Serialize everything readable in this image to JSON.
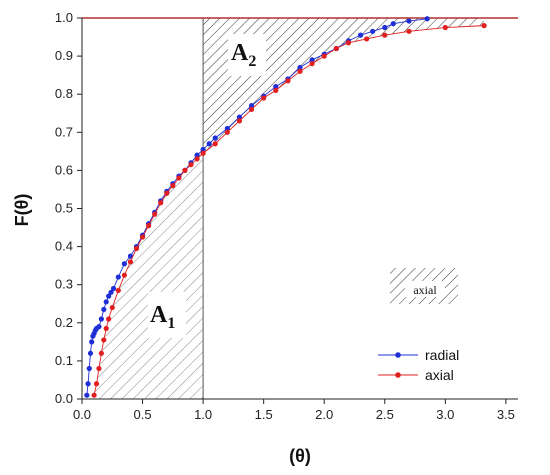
{
  "chart_data": {
    "type": "line",
    "title": "",
    "xlabel": "(θ)",
    "ylabel": "F(θ)",
    "xlim": [
      0,
      3.6
    ],
    "ylim": [
      0,
      1.0
    ],
    "x_ticks": [
      "0.0",
      "0.5",
      "1.0",
      "1.5",
      "2.0",
      "2.5",
      "3.0",
      "3.5"
    ],
    "y_ticks": [
      "0.0",
      "0.1",
      "0.2",
      "0.3",
      "0.4",
      "0.5",
      "0.6",
      "0.7",
      "0.8",
      "0.9",
      "1.0"
    ],
    "grid": false,
    "legend_position": "bottom-right",
    "reference_lines": {
      "y": 1.0,
      "x": 1.0
    },
    "area_labels": {
      "a1": {
        "base": "A",
        "sub": "1"
      },
      "a2": {
        "base": "A",
        "sub": "2"
      }
    },
    "hatch_legend_label": "axial",
    "series": [
      {
        "name": "radial",
        "color": "#1f2fd6",
        "x": [
          0.04,
          0.05,
          0.06,
          0.07,
          0.08,
          0.09,
          0.1,
          0.11,
          0.12,
          0.14,
          0.16,
          0.18,
          0.2,
          0.22,
          0.24,
          0.26,
          0.3,
          0.35,
          0.4,
          0.45,
          0.5,
          0.55,
          0.6,
          0.65,
          0.7,
          0.75,
          0.8,
          0.85,
          0.9,
          0.95,
          1.0,
          1.05,
          1.1,
          1.2,
          1.3,
          1.4,
          1.5,
          1.6,
          1.7,
          1.8,
          1.9,
          2.0,
          2.1,
          2.2,
          2.3,
          2.4,
          2.5,
          2.57,
          2.7,
          2.85
        ],
        "y": [
          0.01,
          0.04,
          0.08,
          0.12,
          0.15,
          0.165,
          0.172,
          0.18,
          0.185,
          0.19,
          0.21,
          0.235,
          0.255,
          0.27,
          0.28,
          0.29,
          0.32,
          0.355,
          0.375,
          0.4,
          0.43,
          0.46,
          0.49,
          0.52,
          0.545,
          0.565,
          0.585,
          0.6,
          0.62,
          0.64,
          0.655,
          0.67,
          0.685,
          0.71,
          0.74,
          0.77,
          0.795,
          0.82,
          0.84,
          0.87,
          0.89,
          0.905,
          0.92,
          0.94,
          0.955,
          0.965,
          0.975,
          0.985,
          0.992,
          0.998
        ]
      },
      {
        "name": "axial",
        "color": "#e32020",
        "x": [
          0.1,
          0.12,
          0.14,
          0.16,
          0.18,
          0.2,
          0.22,
          0.25,
          0.3,
          0.35,
          0.4,
          0.45,
          0.5,
          0.55,
          0.6,
          0.65,
          0.7,
          0.75,
          0.8,
          0.85,
          0.9,
          0.95,
          1.0,
          1.1,
          1.2,
          1.3,
          1.4,
          1.5,
          1.6,
          1.7,
          1.8,
          1.9,
          2.0,
          2.1,
          2.2,
          2.35,
          2.5,
          2.7,
          3.0,
          3.32
        ],
        "y": [
          0.01,
          0.04,
          0.08,
          0.12,
          0.155,
          0.185,
          0.21,
          0.24,
          0.285,
          0.325,
          0.36,
          0.395,
          0.425,
          0.455,
          0.485,
          0.515,
          0.54,
          0.56,
          0.58,
          0.6,
          0.615,
          0.63,
          0.645,
          0.67,
          0.7,
          0.73,
          0.76,
          0.79,
          0.81,
          0.835,
          0.86,
          0.88,
          0.9,
          0.92,
          0.935,
          0.945,
          0.955,
          0.965,
          0.975,
          0.98
        ]
      }
    ]
  }
}
